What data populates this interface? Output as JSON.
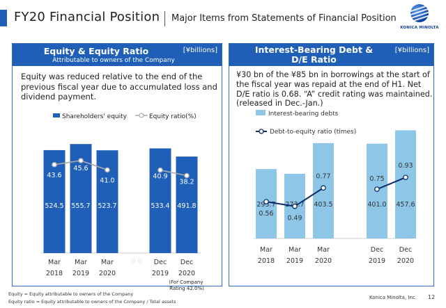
{
  "header": {
    "title": "FY20 Financial Position",
    "subtitle": "Major Items from Statements of Financial Position",
    "logo_text": "KONICA MINOLTA"
  },
  "left_panel": {
    "title": "Equity & Equity Ratio",
    "subtitle": "Attributable to owners of the Company",
    "unit": "[¥billions]",
    "description": "Equity was reduced relative to the end of the previous fiscal year due to accumulated loss and dividend payment.",
    "legend_bar": "Shareholders' equity",
    "legend_line": "Equity ratio(%)",
    "note": "(For Company Rating 42.0%)"
  },
  "right_panel": {
    "title_line1": "Interest-Bearing Debt &",
    "title_line2": "D/E Ratio",
    "unit": "[¥billions]",
    "description": "¥30 bn of the ¥85 bn in borrowings at the start of the fiscal year was repaid at the end of H1. Net D/E ratio is 0.68. “A” credit rating was maintained. (released in Dec.-Jan.)",
    "legend_bar": "Interest-bearing debts",
    "legend_line": "Debt-to-equity ratio (times)"
  },
  "chart_data": [
    {
      "type": "bar",
      "categories": [
        [
          "Mar",
          "2018"
        ],
        [
          "Mar",
          "2019"
        ],
        [
          "Mar",
          "2020"
        ],
        [
          "Dec",
          "2019"
        ],
        [
          "Dec",
          "2020"
        ]
      ],
      "series": [
        {
          "name": "Shareholders' equity",
          "kind": "bar",
          "values": [
            524.5,
            555.7,
            523.7,
            533.4,
            491.8
          ]
        },
        {
          "name": "Equity ratio(%)",
          "kind": "line",
          "values": [
            43.6,
            45.6,
            41.0,
            40.9,
            38.2
          ]
        }
      ],
      "bar_ylim": [
        0,
        620
      ],
      "line_ylim": [
        0,
        60
      ],
      "axis_break_label": "0.0",
      "colors": {
        "bar": "#1f5fb8",
        "line": "#aaaaaa",
        "marker": "#ffffff",
        "bar_label": "#ffffff"
      }
    },
    {
      "type": "bar",
      "categories": [
        [
          "Mar",
          "2018"
        ],
        [
          "Mar",
          "2019"
        ],
        [
          "Mar",
          "2020"
        ],
        [
          "Dec",
          "2019"
        ],
        [
          "Dec",
          "2020"
        ]
      ],
      "series": [
        {
          "name": "Interest-bearing debts",
          "kind": "bar",
          "values": [
            293.7,
            273.7,
            403.5,
            401.0,
            457.6
          ]
        },
        {
          "name": "Debt-to-equity ratio (times)",
          "kind": "line",
          "values": [
            0.56,
            0.49,
            0.77,
            0.75,
            0.93
          ]
        }
      ],
      "bar_ylim": [
        0,
        500
      ],
      "line_ylim": [
        0,
        1.8
      ],
      "colors": {
        "bar": "#8ec6e8",
        "line": "#0b2c6b",
        "marker": "#ffffff",
        "bar_label": "#333333"
      }
    }
  ],
  "footer": {
    "note1": "Equity = Equity attributable to owners of the Company",
    "note2": "Equity ratio = Equity attributable to owners of the Company / Total assets",
    "company": "Konica Minolta, Inc.",
    "page": "12"
  }
}
